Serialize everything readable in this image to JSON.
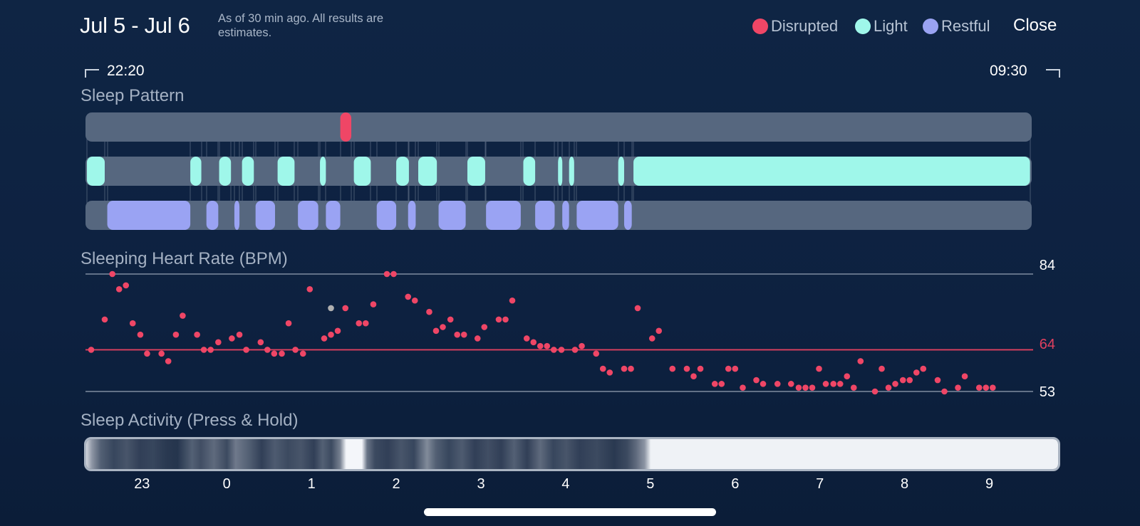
{
  "header": {
    "date_range": "Jul 5 - Jul 6",
    "estimate_note": "As of 30 min ago. All results are estimates.",
    "close_label": "Close"
  },
  "legend": {
    "disrupted": "Disrupted",
    "light": "Light",
    "restful": "Restful"
  },
  "colors": {
    "disrupted": "#ef4666",
    "light": "#9ff7ea",
    "restful": "#9aa3f3",
    "track": "#56677f",
    "heart_rate_avg": "#e0405f",
    "outlier_point": "#b0b0b0"
  },
  "sleep_window": {
    "start": "22:20",
    "end": "09:30"
  },
  "sections": {
    "sleep_pattern": "Sleep Pattern",
    "heart_rate": "Sleeping Heart Rate (BPM)",
    "activity": "Sleep Activity (Press & Hold)"
  },
  "chart_data": [
    {
      "type": "timeline",
      "name_hint": "sleep-pattern",
      "x_unit": "hours since midnight (negative = before midnight)",
      "x_range": [
        -1.667,
        9.5
      ],
      "stages": [
        "Disrupted",
        "Light",
        "Restful"
      ],
      "segments": {
        "Disrupted": [
          [
            1.34,
            1.47
          ]
        ],
        "Light": [
          [
            -1.65,
            -1.44
          ],
          [
            -0.43,
            -0.3
          ],
          [
            -0.09,
            0.05
          ],
          [
            0.18,
            0.32
          ],
          [
            0.6,
            0.8
          ],
          [
            1.1,
            1.17
          ],
          [
            1.5,
            1.7
          ],
          [
            2.0,
            2.15
          ],
          [
            2.26,
            2.48
          ],
          [
            2.84,
            3.05
          ],
          [
            3.5,
            3.64
          ],
          [
            3.91,
            3.96
          ],
          [
            4.04,
            4.1
          ],
          [
            4.62,
            4.69
          ],
          [
            4.8,
            9.48
          ]
        ],
        "Restful": [
          [
            -1.41,
            -0.43
          ],
          [
            -0.24,
            -0.1
          ],
          [
            0.09,
            0.15
          ],
          [
            0.34,
            0.57
          ],
          [
            0.84,
            1.08
          ],
          [
            1.17,
            1.34
          ],
          [
            1.77,
            2.0
          ],
          [
            2.14,
            2.23
          ],
          [
            2.5,
            2.82
          ],
          [
            3.06,
            3.47
          ],
          [
            3.64,
            3.87
          ],
          [
            3.96,
            4.04
          ],
          [
            4.13,
            4.62
          ],
          [
            4.69,
            4.78
          ]
        ]
      }
    },
    {
      "type": "scatter",
      "name_hint": "sleeping-heart-rate",
      "ylabel": "Sleeping Heart Rate (BPM)",
      "y_ref": {
        "max": 84,
        "avg": 64,
        "min": 53
      },
      "x_unit": "hours since midnight",
      "xlim": [
        -1.667,
        9.5
      ],
      "ylim": [
        53,
        84
      ],
      "points": [
        [
          -1.6,
          64
        ],
        [
          -1.44,
          72
        ],
        [
          -1.35,
          84
        ],
        [
          -1.27,
          80
        ],
        [
          -1.19,
          81
        ],
        [
          -1.11,
          71
        ],
        [
          -1.02,
          68
        ],
        [
          -0.94,
          63
        ],
        [
          -0.77,
          63
        ],
        [
          -0.69,
          61
        ],
        [
          -0.6,
          68
        ],
        [
          -0.52,
          73
        ],
        [
          -0.35,
          68
        ],
        [
          -0.27,
          64
        ],
        [
          -0.19,
          64
        ],
        [
          -0.1,
          66
        ],
        [
          0.06,
          67
        ],
        [
          0.15,
          68
        ],
        [
          0.23,
          64
        ],
        [
          0.4,
          66
        ],
        [
          0.48,
          64
        ],
        [
          0.56,
          63
        ],
        [
          0.65,
          63
        ],
        [
          0.73,
          71
        ],
        [
          0.81,
          64
        ],
        [
          0.9,
          63
        ],
        [
          0.98,
          80
        ],
        [
          1.15,
          67
        ],
        [
          1.23,
          68
        ],
        [
          1.31,
          69
        ],
        [
          1.4,
          75
        ],
        [
          1.56,
          71
        ],
        [
          1.64,
          71
        ],
        [
          1.73,
          76
        ],
        [
          1.89,
          84
        ],
        [
          1.97,
          84
        ],
        [
          2.14,
          78
        ],
        [
          2.22,
          77
        ],
        [
          2.39,
          74
        ],
        [
          2.47,
          69
        ],
        [
          2.55,
          70
        ],
        [
          2.64,
          72
        ],
        [
          2.72,
          68
        ],
        [
          2.8,
          68
        ],
        [
          2.96,
          67
        ],
        [
          3.04,
          70
        ],
        [
          3.21,
          72
        ],
        [
          3.29,
          72
        ],
        [
          3.37,
          77
        ],
        [
          3.54,
          67
        ],
        [
          3.62,
          66
        ],
        [
          3.7,
          65
        ],
        [
          3.78,
          65
        ],
        [
          3.86,
          64
        ],
        [
          3.95,
          64
        ],
        [
          4.11,
          64
        ],
        [
          4.19,
          65
        ],
        [
          4.36,
          63
        ],
        [
          4.44,
          59
        ],
        [
          4.52,
          58
        ],
        [
          4.69,
          59
        ],
        [
          4.77,
          59
        ],
        [
          4.85,
          75
        ],
        [
          5.02,
          67
        ],
        [
          5.1,
          69
        ],
        [
          5.26,
          59
        ],
        [
          5.43,
          59
        ],
        [
          5.51,
          57
        ],
        [
          5.59,
          59
        ],
        [
          5.76,
          55
        ],
        [
          5.84,
          55
        ],
        [
          5.92,
          59
        ],
        [
          6.0,
          59
        ],
        [
          6.09,
          54
        ],
        [
          6.25,
          56
        ],
        [
          6.33,
          55
        ],
        [
          6.5,
          55
        ],
        [
          6.66,
          55
        ],
        [
          6.75,
          54
        ],
        [
          6.83,
          54
        ],
        [
          6.91,
          54
        ],
        [
          6.99,
          59
        ],
        [
          7.07,
          55
        ],
        [
          7.16,
          55
        ],
        [
          7.24,
          55
        ],
        [
          7.32,
          57
        ],
        [
          7.4,
          54
        ],
        [
          7.48,
          61
        ],
        [
          7.65,
          53
        ],
        [
          7.73,
          59
        ],
        [
          7.81,
          54
        ],
        [
          7.89,
          55
        ],
        [
          7.98,
          56
        ],
        [
          8.06,
          56
        ],
        [
          8.14,
          58
        ],
        [
          8.22,
          59
        ],
        [
          8.39,
          56
        ],
        [
          8.47,
          53
        ],
        [
          8.63,
          54
        ],
        [
          8.71,
          57
        ],
        [
          8.88,
          54
        ],
        [
          8.96,
          54
        ],
        [
          9.04,
          54
        ]
      ],
      "outlier_points": [
        [
          1.23,
          75
        ]
      ]
    },
    {
      "type": "heatmap",
      "name_hint": "sleep-activity",
      "title": "Sleep Activity (Press & Hold)",
      "x_unit": "hours since midnight",
      "xlim": [
        -1.667,
        9.5
      ],
      "x_ticks": [
        "23",
        "0",
        "1",
        "2",
        "3",
        "4",
        "5",
        "6",
        "7",
        "8",
        "9"
      ],
      "intensity": [
        [
          -1.667,
          0.85
        ],
        [
          -1.6,
          0.55
        ],
        [
          -1.5,
          0.3
        ],
        [
          -1.35,
          0.18
        ],
        [
          -1.2,
          0.25
        ],
        [
          -1.05,
          0.15
        ],
        [
          -0.9,
          0.18
        ],
        [
          -0.75,
          0.12
        ],
        [
          -0.62,
          0.1
        ],
        [
          -0.45,
          0.3
        ],
        [
          -0.35,
          0.22
        ],
        [
          -0.2,
          0.35
        ],
        [
          -0.05,
          0.2
        ],
        [
          0.05,
          0.42
        ],
        [
          0.2,
          0.3
        ],
        [
          0.35,
          0.15
        ],
        [
          0.5,
          0.28
        ],
        [
          0.65,
          0.2
        ],
        [
          0.8,
          0.25
        ],
        [
          0.95,
          0.15
        ],
        [
          1.05,
          0.3
        ],
        [
          1.15,
          0.2
        ],
        [
          1.25,
          0.45
        ],
        [
          1.32,
          1.0
        ],
        [
          1.5,
          1.0
        ],
        [
          1.56,
          0.4
        ],
        [
          1.65,
          0.2
        ],
        [
          1.8,
          0.15
        ],
        [
          1.95,
          0.25
        ],
        [
          2.1,
          0.18
        ],
        [
          2.25,
          0.5
        ],
        [
          2.35,
          0.3
        ],
        [
          2.5,
          0.18
        ],
        [
          2.65,
          0.28
        ],
        [
          2.8,
          0.15
        ],
        [
          2.95,
          0.22
        ],
        [
          3.1,
          0.15
        ],
        [
          3.25,
          0.3
        ],
        [
          3.4,
          0.15
        ],
        [
          3.55,
          0.35
        ],
        [
          3.7,
          0.18
        ],
        [
          3.85,
          0.25
        ],
        [
          4.0,
          0.15
        ],
        [
          4.2,
          0.2
        ],
        [
          4.4,
          0.12
        ],
        [
          4.55,
          0.2
        ],
        [
          4.65,
          0.35
        ],
        [
          4.75,
          0.55
        ],
        [
          4.82,
          0.98
        ],
        [
          9.5,
          0.98
        ]
      ]
    }
  ]
}
